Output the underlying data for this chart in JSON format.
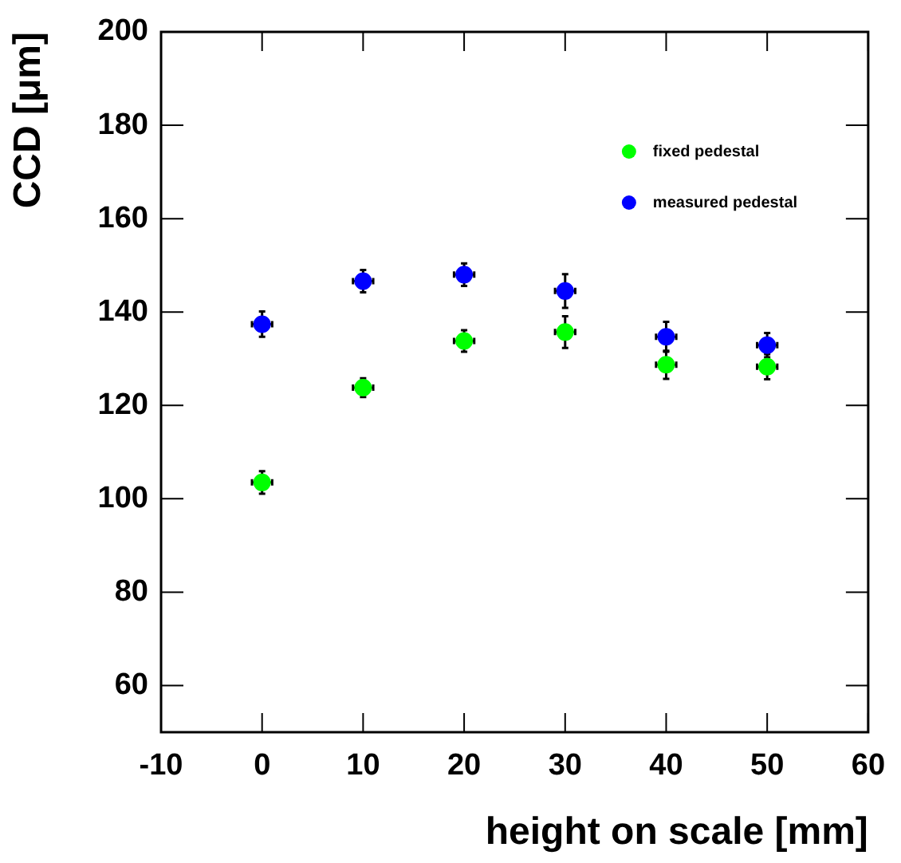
{
  "chart_data": {
    "type": "scatter",
    "xlabel": "height on scale [mm]",
    "ylabel": "CCD [μm]",
    "x": [
      0,
      10,
      20,
      30,
      40,
      50
    ],
    "series": [
      {
        "name": "fixed pedestal",
        "color": "#00ff00",
        "values": [
          103.5,
          123.8,
          133.8,
          135.7,
          128.7,
          128.3
        ],
        "errors": [
          2.4,
          2.0,
          2.3,
          3.4,
          3.0,
          2.7
        ],
        "xerrors": [
          1,
          1,
          1,
          1,
          1,
          1
        ]
      },
      {
        "name": "measured pedestal",
        "color": "#0000ff",
        "values": [
          137.4,
          146.6,
          148.0,
          144.5,
          134.7,
          132.9
        ],
        "errors": [
          2.7,
          2.4,
          2.4,
          3.6,
          3.2,
          2.6
        ],
        "xerrors": [
          1,
          1,
          1,
          1,
          1,
          1
        ]
      }
    ],
    "xlim": [
      -10,
      60
    ],
    "xticks": [
      -10,
      0,
      10,
      20,
      30,
      40,
      50,
      60
    ],
    "ylim": [
      50,
      200
    ],
    "yticks": [
      60,
      80,
      100,
      120,
      140,
      160,
      180,
      200
    ],
    "grid": false,
    "legend": "top right",
    "marker": "circle"
  }
}
